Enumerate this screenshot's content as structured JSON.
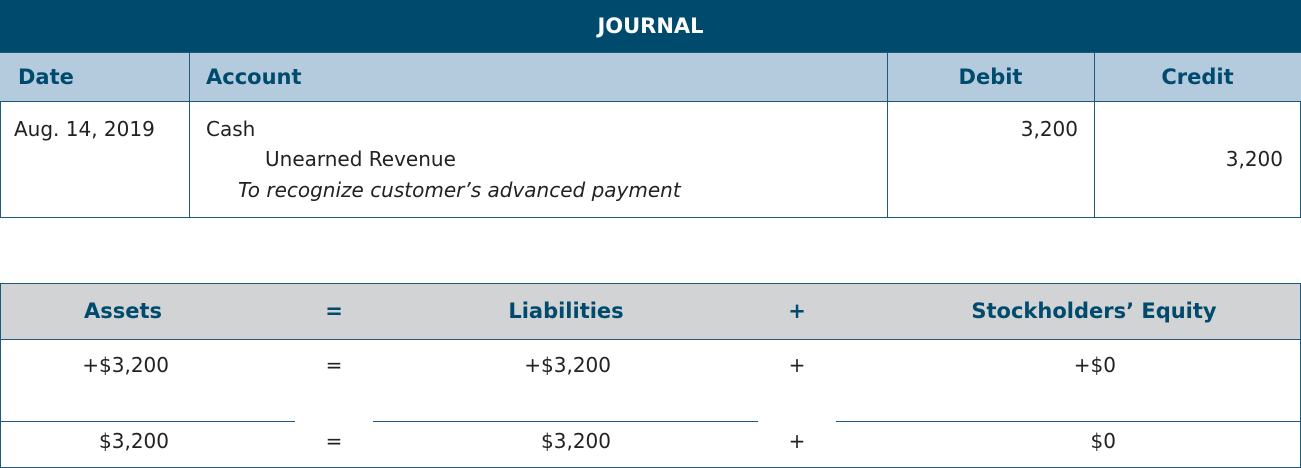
{
  "journal": {
    "title": "JOURNAL",
    "headers": {
      "date": "Date",
      "account": "Account",
      "debit": "Debit",
      "credit": "Credit"
    },
    "entry": {
      "date": "Aug. 14, 2019",
      "debit_account": "Cash",
      "credit_account": "Unearned Revenue",
      "description": "To recognize customer’s advanced payment",
      "debit_amount": "3,200",
      "credit_amount": "3,200"
    }
  },
  "equation": {
    "headers": {
      "assets": "Assets",
      "eq": "=",
      "liabilities": "Liabilities",
      "plus": "+",
      "equity": "Stockholders’ Equity"
    },
    "change": {
      "assets": "+$3,200",
      "eq": "=",
      "liabilities": "+$3,200",
      "plus": "+",
      "equity": "+$0"
    },
    "total": {
      "assets": "$3,200",
      "eq": "=",
      "liabilities": "$3,200",
      "plus": "+",
      "equity": "$0"
    }
  },
  "colors": {
    "title_bar": "#004a6d",
    "header_blue": "#b3cbdc",
    "header_gray": "#d1d3d4",
    "header_text": "#004a6d"
  }
}
